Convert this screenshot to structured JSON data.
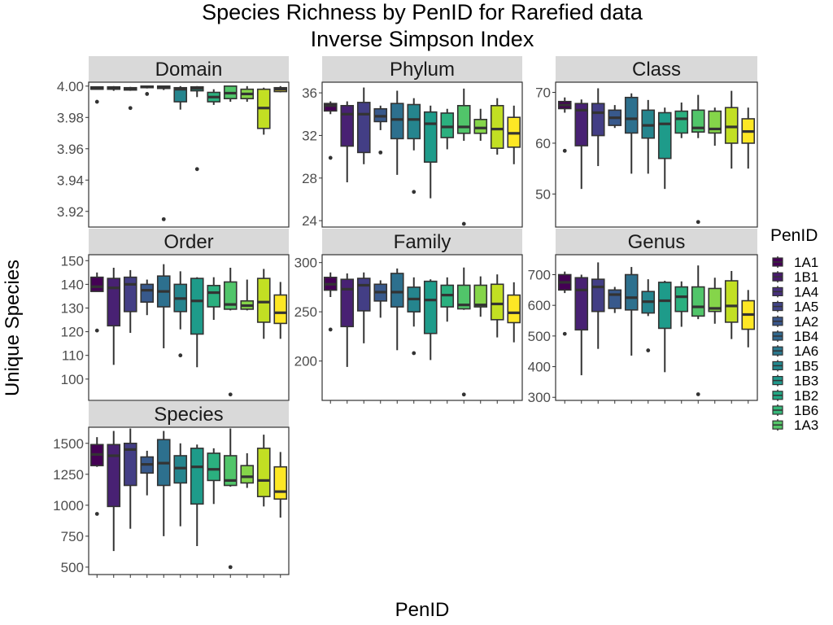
{
  "chart_data": {
    "type": "boxplot",
    "title": "Species Richness by PenID for Rarefied data",
    "subtitle": "Inverse Simpson Index",
    "xlabel": "PenID",
    "ylabel": "Unique Species",
    "legend": {
      "title": "PenID",
      "placement": "right",
      "entries": [
        "1A1",
        "1B1",
        "1A4",
        "1A5",
        "1A2",
        "1B4",
        "1A6",
        "1B5",
        "1B3",
        "1B2",
        "1B6",
        "1A3"
      ],
      "colors": [
        "#440154",
        "#481A6C",
        "#472F7D",
        "#414487",
        "#39568C",
        "#31688E",
        "#2A788E",
        "#23888E",
        "#1F988B",
        "#22A884",
        "#35B779",
        "#54C568"
      ]
    },
    "colors": {
      "box_fill": [
        "#440154",
        "#482173",
        "#433E85",
        "#38598C",
        "#2D708E",
        "#25858E",
        "#1E9B8A",
        "#2BB07F",
        "#51C56A",
        "#85D54A",
        "#C2DF23",
        "#FDE725"
      ],
      "strip_bg": "#D9D9D9",
      "outline": "#333333"
    },
    "facets": [
      {
        "name": "Domain",
        "ylim": [
          3.91,
          4.0025
        ],
        "yticks": [
          3.92,
          3.94,
          3.96,
          3.98,
          4.0
        ],
        "ytick_labels": [
          "3.92",
          "3.94",
          "3.96",
          "3.98",
          "4.00"
        ],
        "boxes": [
          {
            "q1": 3.998,
            "med": 3.999,
            "q3": 3.9995,
            "lo": 3.998,
            "hi": 3.9995,
            "out": [
              3.99
            ]
          },
          {
            "q1": 3.998,
            "med": 3.999,
            "q3": 3.9995,
            "lo": 3.997,
            "hi": 4.0,
            "out": []
          },
          {
            "q1": 3.9975,
            "med": 3.9985,
            "q3": 3.999,
            "lo": 3.997,
            "hi": 3.9995,
            "out": [
              3.986
            ]
          },
          {
            "q1": 3.999,
            "med": 3.9995,
            "q3": 4.0,
            "lo": 3.9985,
            "hi": 4.0,
            "out": [
              3.995
            ]
          },
          {
            "q1": 3.9985,
            "med": 3.999,
            "q3": 4.0,
            "lo": 3.9975,
            "hi": 4.0,
            "out": [
              3.915
            ]
          },
          {
            "q1": 3.99,
            "med": 3.998,
            "q3": 3.999,
            "lo": 3.985,
            "hi": 4.0,
            "out": []
          },
          {
            "q1": 3.997,
            "med": 3.9985,
            "q3": 3.9995,
            "lo": 3.993,
            "hi": 4.0,
            "out": [
              3.947
            ]
          },
          {
            "q1": 3.99,
            "med": 3.993,
            "q3": 3.996,
            "lo": 3.988,
            "hi": 3.998,
            "out": []
          },
          {
            "q1": 3.992,
            "med": 3.9955,
            "q3": 4.0,
            "lo": 3.99,
            "hi": 4.0,
            "out": []
          },
          {
            "q1": 3.992,
            "med": 3.995,
            "q3": 3.998,
            "lo": 3.99,
            "hi": 4.0,
            "out": []
          },
          {
            "q1": 3.973,
            "med": 3.986,
            "q3": 3.998,
            "lo": 3.969,
            "hi": 3.999,
            "out": []
          },
          {
            "q1": 3.9965,
            "med": 3.998,
            "q3": 3.999,
            "lo": 3.996,
            "hi": 4.0,
            "out": []
          }
        ]
      },
      {
        "name": "Phylum",
        "ylim": [
          23.4,
          37.0
        ],
        "yticks": [
          24,
          28,
          32,
          36
        ],
        "ytick_labels": [
          "24",
          "28",
          "32",
          "36"
        ],
        "boxes": [
          {
            "q1": 34.3,
            "med": 34.8,
            "q3": 35.0,
            "lo": 34.0,
            "hi": 35.2,
            "out": [
              29.9
            ]
          },
          {
            "q1": 31.0,
            "med": 34.0,
            "q3": 34.8,
            "lo": 27.6,
            "hi": 35.2,
            "out": []
          },
          {
            "q1": 30.4,
            "med": 34.0,
            "q3": 35.1,
            "lo": 29.3,
            "hi": 36.5,
            "out": []
          },
          {
            "q1": 33.3,
            "med": 33.8,
            "q3": 34.5,
            "lo": 32.5,
            "hi": 34.8,
            "out": [
              30.4
            ]
          },
          {
            "q1": 31.7,
            "med": 33.5,
            "q3": 35.0,
            "lo": 28.3,
            "hi": 36.2,
            "out": []
          },
          {
            "q1": 31.7,
            "med": 33.5,
            "q3": 34.9,
            "lo": 30.6,
            "hi": 35.5,
            "out": [
              26.7
            ]
          },
          {
            "q1": 29.5,
            "med": 33.1,
            "q3": 34.2,
            "lo": 26.1,
            "hi": 34.8,
            "out": []
          },
          {
            "q1": 31.8,
            "med": 32.8,
            "q3": 34.1,
            "lo": 30.7,
            "hi": 34.5,
            "out": []
          },
          {
            "q1": 32.2,
            "med": 32.8,
            "q3": 34.8,
            "lo": 31.5,
            "hi": 36.4,
            "out": [
              23.7
            ]
          },
          {
            "q1": 32.2,
            "med": 32.7,
            "q3": 33.5,
            "lo": 31.5,
            "hi": 34.5,
            "out": []
          },
          {
            "q1": 30.8,
            "med": 32.6,
            "q3": 34.8,
            "lo": 30.2,
            "hi": 35.5,
            "out": []
          },
          {
            "q1": 30.9,
            "med": 32.2,
            "q3": 33.7,
            "lo": 29.3,
            "hi": 34.8,
            "out": []
          }
        ]
      },
      {
        "name": "Class",
        "ylim": [
          43.5,
          72.0
        ],
        "yticks": [
          50,
          60,
          70
        ],
        "ytick_labels": [
          "50",
          "60",
          "70"
        ],
        "boxes": [
          {
            "q1": 66.8,
            "med": 67.5,
            "q3": 68.2,
            "lo": 66.0,
            "hi": 69.0,
            "out": [
              58.5
            ]
          },
          {
            "q1": 59.5,
            "med": 66.5,
            "q3": 67.8,
            "lo": 51.0,
            "hi": 68.6,
            "out": []
          },
          {
            "q1": 61.5,
            "med": 66.0,
            "q3": 67.8,
            "lo": 55.5,
            "hi": 70.8,
            "out": []
          },
          {
            "q1": 63.5,
            "med": 65.0,
            "q3": 66.5,
            "lo": 63.0,
            "hi": 67.5,
            "out": []
          },
          {
            "q1": 62.0,
            "med": 64.8,
            "q3": 69.0,
            "lo": 54.0,
            "hi": 69.8,
            "out": []
          },
          {
            "q1": 61.0,
            "med": 63.5,
            "q3": 66.5,
            "lo": 54.0,
            "hi": 68.5,
            "out": []
          },
          {
            "q1": 57.0,
            "med": 63.8,
            "q3": 66.0,
            "lo": 51.0,
            "hi": 67.0,
            "out": []
          },
          {
            "q1": 62.0,
            "med": 64.8,
            "q3": 66.3,
            "lo": 61.0,
            "hi": 68.0,
            "out": []
          },
          {
            "q1": 62.2,
            "med": 63.0,
            "q3": 66.5,
            "lo": 61.0,
            "hi": 69.5,
            "out": [
              44.5
            ]
          },
          {
            "q1": 62.0,
            "med": 62.8,
            "q3": 66.3,
            "lo": 59.5,
            "hi": 67.0,
            "out": []
          },
          {
            "q1": 60.0,
            "med": 63.2,
            "q3": 67.0,
            "lo": 55.0,
            "hi": 70.3,
            "out": []
          },
          {
            "q1": 60.0,
            "med": 62.3,
            "q3": 64.8,
            "lo": 55.0,
            "hi": 67.0,
            "out": []
          }
        ]
      },
      {
        "name": "Order",
        "ylim": [
          91.0,
          152.5
        ],
        "yticks": [
          100,
          110,
          120,
          130,
          140,
          150
        ],
        "ytick_labels": [
          "100",
          "110",
          "120",
          "130",
          "140",
          "150"
        ],
        "boxes": [
          {
            "q1": 137.0,
            "med": 139.0,
            "q3": 143.0,
            "lo": 137.0,
            "hi": 145.0,
            "out": [
              120.5
            ]
          },
          {
            "q1": 122.5,
            "med": 138.5,
            "q3": 142.5,
            "lo": 106.0,
            "hi": 147.0,
            "out": []
          },
          {
            "q1": 128.5,
            "med": 140.0,
            "q3": 143.0,
            "lo": 119.5,
            "hi": 146.0,
            "out": []
          },
          {
            "q1": 132.5,
            "med": 137.5,
            "q3": 140.0,
            "lo": 127.0,
            "hi": 142.0,
            "out": []
          },
          {
            "q1": 130.5,
            "med": 137.0,
            "q3": 143.5,
            "lo": 113.0,
            "hi": 148.5,
            "out": []
          },
          {
            "q1": 128.5,
            "med": 134.0,
            "q3": 140.0,
            "lo": 121.0,
            "hi": 145.5,
            "out": [
              110.0
            ]
          },
          {
            "q1": 119.0,
            "med": 133.0,
            "q3": 142.5,
            "lo": 105.0,
            "hi": 143.0,
            "out": []
          },
          {
            "q1": 130.5,
            "med": 136.5,
            "q3": 139.5,
            "lo": 125.0,
            "hi": 143.0,
            "out": []
          },
          {
            "q1": 129.5,
            "med": 131.5,
            "q3": 141.0,
            "lo": 129.0,
            "hi": 147.0,
            "out": [
              93.5
            ]
          },
          {
            "q1": 129.5,
            "med": 131.0,
            "q3": 133.0,
            "lo": 129.0,
            "hi": 142.0,
            "out": []
          },
          {
            "q1": 124.0,
            "med": 132.5,
            "q3": 142.5,
            "lo": 117.0,
            "hi": 146.5,
            "out": []
          },
          {
            "q1": 123.5,
            "med": 128.0,
            "q3": 135.5,
            "lo": 117.0,
            "hi": 141.0,
            "out": []
          }
        ]
      },
      {
        "name": "Family",
        "ylim": [
          160.0,
          308.0
        ],
        "yticks": [
          200,
          250,
          300
        ],
        "ytick_labels": [
          "200",
          "250",
          "300"
        ],
        "boxes": [
          {
            "q1": 272.0,
            "med": 278.0,
            "q3": 285.0,
            "lo": 265.0,
            "hi": 290.0,
            "out": [
              232.0
            ]
          },
          {
            "q1": 235.0,
            "med": 273.0,
            "q3": 283.0,
            "lo": 194.0,
            "hi": 289.0,
            "out": []
          },
          {
            "q1": 251.0,
            "med": 277.0,
            "q3": 284.0,
            "lo": 218.0,
            "hi": 290.0,
            "out": []
          },
          {
            "q1": 261.0,
            "med": 270.0,
            "q3": 278.0,
            "lo": 244.0,
            "hi": 282.0,
            "out": []
          },
          {
            "q1": 255.0,
            "med": 270.0,
            "q3": 289.0,
            "lo": 211.0,
            "hi": 294.0,
            "out": []
          },
          {
            "q1": 250.0,
            "med": 263.0,
            "q3": 275.0,
            "lo": 235.0,
            "hi": 285.0,
            "out": [
              208.0
            ]
          },
          {
            "q1": 228.0,
            "med": 262.0,
            "q3": 281.0,
            "lo": 201.0,
            "hi": 283.0,
            "out": []
          },
          {
            "q1": 255.0,
            "med": 267.0,
            "q3": 277.0,
            "lo": 240.0,
            "hi": 285.0,
            "out": []
          },
          {
            "q1": 253.0,
            "med": 257.0,
            "q3": 277.0,
            "lo": 252.0,
            "hi": 295.0,
            "out": [
              166.0
            ]
          },
          {
            "q1": 255.0,
            "med": 257.0,
            "q3": 277.0,
            "lo": 245.0,
            "hi": 286.0,
            "out": []
          },
          {
            "q1": 242.0,
            "med": 258.0,
            "q3": 278.0,
            "lo": 224.0,
            "hi": 288.0,
            "out": []
          },
          {
            "q1": 239.0,
            "med": 249.0,
            "q3": 267.0,
            "lo": 219.0,
            "hi": 280.0,
            "out": []
          }
        ]
      },
      {
        "name": "Genus",
        "ylim": [
          290.0,
          765.0
        ],
        "yticks": [
          300,
          400,
          500,
          600,
          700
        ],
        "ytick_labels": [
          "300",
          "400",
          "500",
          "600",
          "700"
        ],
        "boxes": [
          {
            "q1": 650.0,
            "med": 675.0,
            "q3": 700.0,
            "lo": 640.0,
            "hi": 710.0,
            "out": [
              507.0
            ]
          },
          {
            "q1": 520.0,
            "med": 650.0,
            "q3": 690.0,
            "lo": 372.0,
            "hi": 700.0,
            "out": []
          },
          {
            "q1": 580.0,
            "med": 660.0,
            "q3": 685.0,
            "lo": 458.0,
            "hi": 740.0,
            "out": []
          },
          {
            "q1": 590.0,
            "med": 635.0,
            "q3": 650.0,
            "lo": 575.0,
            "hi": 660.0,
            "out": []
          },
          {
            "q1": 585.0,
            "med": 625.0,
            "q3": 700.0,
            "lo": 436.0,
            "hi": 725.0,
            "out": []
          },
          {
            "q1": 575.0,
            "med": 612.0,
            "q3": 645.0,
            "lo": 565.0,
            "hi": 685.0,
            "out": [
              453.0
            ]
          },
          {
            "q1": 525.0,
            "med": 615.0,
            "q3": 675.0,
            "lo": 382.0,
            "hi": 680.0,
            "out": []
          },
          {
            "q1": 580.0,
            "med": 628.0,
            "q3": 660.0,
            "lo": 530.0,
            "hi": 678.0,
            "out": []
          },
          {
            "q1": 565.0,
            "med": 595.0,
            "q3": 660.0,
            "lo": 555.0,
            "hi": 730.0,
            "out": [
              310.0
            ]
          },
          {
            "q1": 580.0,
            "med": 590.0,
            "q3": 655.0,
            "lo": 540.0,
            "hi": 690.0,
            "out": []
          },
          {
            "q1": 545.0,
            "med": 598.0,
            "q3": 680.0,
            "lo": 490.0,
            "hi": 712.0,
            "out": []
          },
          {
            "q1": 522.0,
            "med": 570.0,
            "q3": 615.0,
            "lo": 463.0,
            "hi": 650.0,
            "out": []
          }
        ]
      },
      {
        "name": "Species",
        "ylim": [
          440.0,
          1630.0
        ],
        "yticks": [
          500,
          750,
          1000,
          1250,
          1500
        ],
        "ytick_labels": [
          "500",
          "750",
          "1000",
          "1250",
          "1500"
        ],
        "boxes": [
          {
            "q1": 1320.0,
            "med": 1410.0,
            "q3": 1490.0,
            "lo": 1310.0,
            "hi": 1550.0,
            "out": [
              930.0
            ]
          },
          {
            "q1": 990.0,
            "med": 1400.0,
            "q3": 1490.0,
            "lo": 630.0,
            "hi": 1600.0,
            "out": []
          },
          {
            "q1": 1160.0,
            "med": 1450.0,
            "q3": 1500.0,
            "lo": 810.0,
            "hi": 1620.0,
            "out": []
          },
          {
            "q1": 1260.0,
            "med": 1330.0,
            "q3": 1390.0,
            "lo": 1080.0,
            "hi": 1440.0,
            "out": []
          },
          {
            "q1": 1160.0,
            "med": 1340.0,
            "q3": 1530.0,
            "lo": 750.0,
            "hi": 1600.0,
            "out": []
          },
          {
            "q1": 1180.0,
            "med": 1300.0,
            "q3": 1400.0,
            "lo": 830.0,
            "hi": 1500.0,
            "out": []
          },
          {
            "q1": 1010.0,
            "med": 1310.0,
            "q3": 1460.0,
            "lo": 670.0,
            "hi": 1490.0,
            "out": []
          },
          {
            "q1": 1200.0,
            "med": 1290.0,
            "q3": 1420.0,
            "lo": 1010.0,
            "hi": 1460.0,
            "out": []
          },
          {
            "q1": 1160.0,
            "med": 1200.0,
            "q3": 1400.0,
            "lo": 1150.0,
            "hi": 1620.0,
            "out": [
              500.0
            ]
          },
          {
            "q1": 1180.0,
            "med": 1230.0,
            "q3": 1320.0,
            "lo": 1140.0,
            "hi": 1420.0,
            "out": []
          },
          {
            "q1": 1070.0,
            "med": 1200.0,
            "q3": 1460.0,
            "lo": 990.0,
            "hi": 1570.0,
            "out": []
          },
          {
            "q1": 1050.0,
            "med": 1110.0,
            "q3": 1310.0,
            "lo": 900.0,
            "hi": 1430.0,
            "out": []
          }
        ]
      }
    ]
  }
}
